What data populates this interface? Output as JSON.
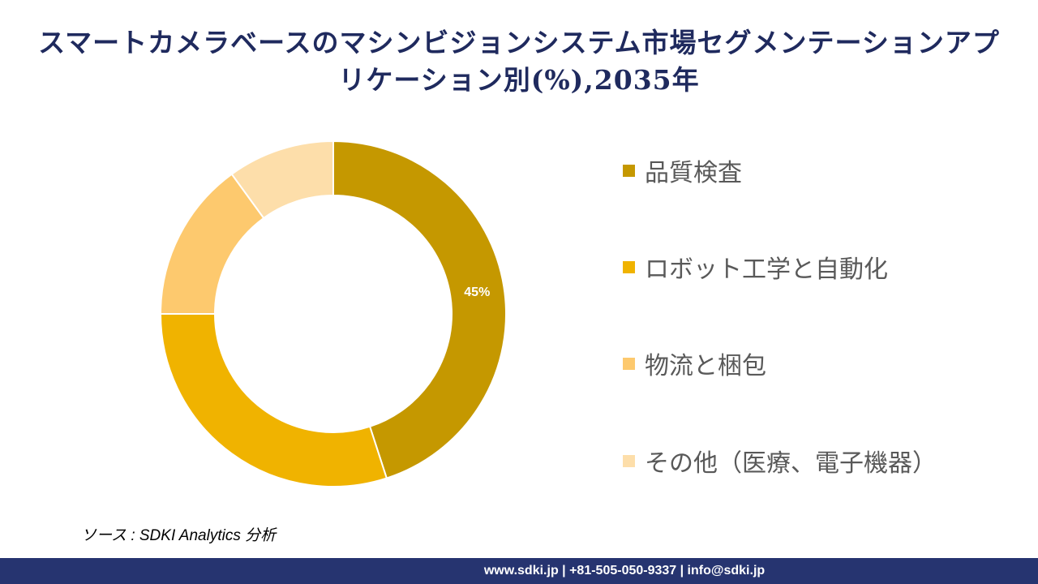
{
  "chart_data": {
    "type": "pie",
    "title": "スマートカメラベースのマシンビジョンシステム市場セグメンテーションアプリケーション別(%),2035年",
    "categories": [
      "品質検査",
      "ロボット工学と自動化",
      "物流と梱包",
      "その他（医療、電子機器）"
    ],
    "values": [
      45,
      30,
      15,
      10
    ],
    "colors": [
      "#C59800",
      "#F0B300",
      "#FDC96E",
      "#FDDEAA"
    ],
    "data_labels": [
      "45%",
      "",
      "",
      ""
    ],
    "donut": true,
    "legend_position": "right"
  },
  "source": "ソース : SDKI Analytics 分析",
  "footer": "www.sdki.jp | +81-505-050-9337 | info@sdki.jp"
}
